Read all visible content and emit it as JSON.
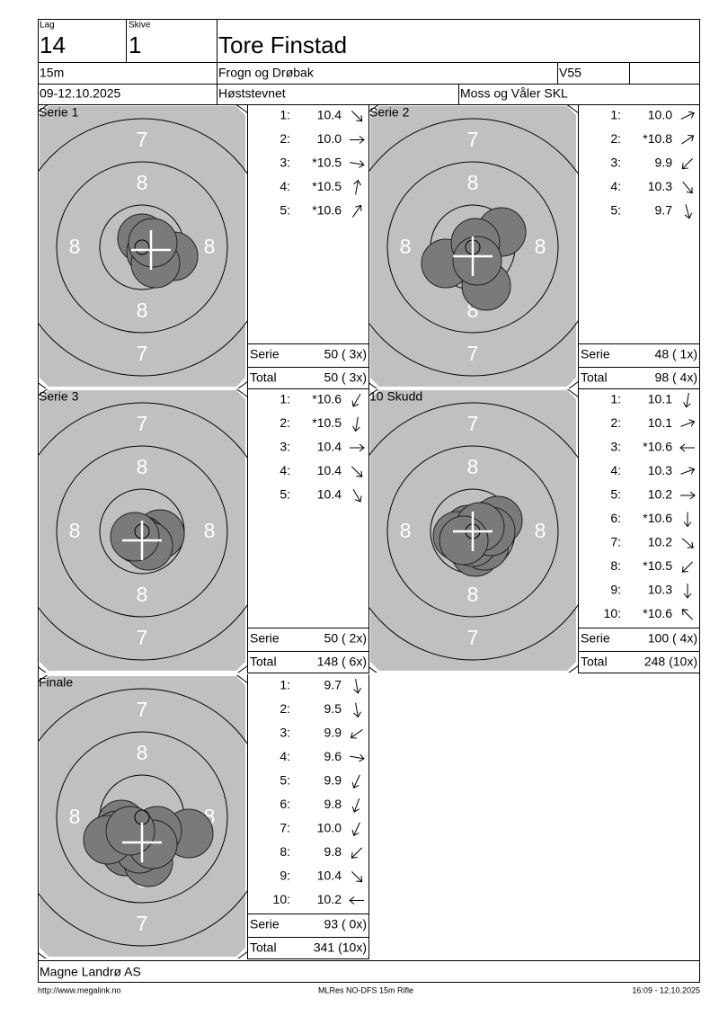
{
  "header": {
    "lag_label": "Lag",
    "lag": "14",
    "skive_label": "Skive",
    "skive": "1",
    "name": "Tore Finstad",
    "range": "15m",
    "club": "Frogn og Drøbak",
    "class": "V55",
    "date": "09-12.10.2025",
    "event": "Høststevnet",
    "organizer": "Moss og Våler SKL"
  },
  "ring_labels": {
    "seven": "7",
    "eight": "8"
  },
  "panels": [
    {
      "title": "Serie 1",
      "shots": [
        {
          "n": "1:",
          "score": "10.4"
        },
        {
          "n": "2:",
          "score": "10.0"
        },
        {
          "n": "3:",
          "score": "*10.5"
        },
        {
          "n": "4:",
          "score": "*10.5"
        },
        {
          "n": "5:",
          "score": "*10.6"
        }
      ],
      "serie_label": "Serie",
      "serie": "50 ( 3x)",
      "total_label": "Total",
      "total": "50 ( 3x)"
    },
    {
      "title": "Serie 2",
      "shots": [
        {
          "n": "1:",
          "score": "10.0"
        },
        {
          "n": "2:",
          "score": "*10.8"
        },
        {
          "n": "3:",
          "score": "9.9"
        },
        {
          "n": "4:",
          "score": "10.3"
        },
        {
          "n": "5:",
          "score": "9.7"
        }
      ],
      "serie_label": "Serie",
      "serie": "48 ( 1x)",
      "total_label": "Total",
      "total": "98 ( 4x)"
    },
    {
      "title": "Serie 3",
      "shots": [
        {
          "n": "1:",
          "score": "*10.6"
        },
        {
          "n": "2:",
          "score": "*10.5"
        },
        {
          "n": "3:",
          "score": "10.4"
        },
        {
          "n": "4:",
          "score": "10.4"
        },
        {
          "n": "5:",
          "score": "10.4"
        }
      ],
      "serie_label": "Serie",
      "serie": "50 ( 2x)",
      "total_label": "Total",
      "total": "148 ( 6x)"
    },
    {
      "title": "10 Skudd",
      "shots": [
        {
          "n": "1:",
          "score": "10.1"
        },
        {
          "n": "2:",
          "score": "10.1"
        },
        {
          "n": "3:",
          "score": "*10.6"
        },
        {
          "n": "4:",
          "score": "10.3"
        },
        {
          "n": "5:",
          "score": "10.2"
        },
        {
          "n": "6:",
          "score": "*10.6"
        },
        {
          "n": "7:",
          "score": "10.2"
        },
        {
          "n": "8:",
          "score": "*10.5"
        },
        {
          "n": "9:",
          "score": "10.3"
        },
        {
          "n": "10:",
          "score": "*10.6"
        }
      ],
      "serie_label": "Serie",
      "serie": "100 ( 4x)",
      "total_label": "Total",
      "total": "248 (10x)"
    },
    {
      "title": "Finale",
      "shots": [
        {
          "n": "1:",
          "score": "9.7"
        },
        {
          "n": "2:",
          "score": "9.5"
        },
        {
          "n": "3:",
          "score": "9.9"
        },
        {
          "n": "4:",
          "score": "9.6"
        },
        {
          "n": "5:",
          "score": "9.9"
        },
        {
          "n": "6:",
          "score": "9.8"
        },
        {
          "n": "7:",
          "score": "10.0"
        },
        {
          "n": "8:",
          "score": "9.8"
        },
        {
          "n": "9:",
          "score": "10.4"
        },
        {
          "n": "10:",
          "score": "10.2"
        }
      ],
      "serie_label": "Serie",
      "serie": "93 ( 0x)",
      "total_label": "Total",
      "total": "341 (10x)"
    }
  ],
  "footer": {
    "company": "Magne Landrø AS",
    "url": "http://www.megalink.no",
    "software": "MLRes NO-DFS 15m Rifle",
    "timestamp": "16:09 - 12.10.2025"
  }
}
